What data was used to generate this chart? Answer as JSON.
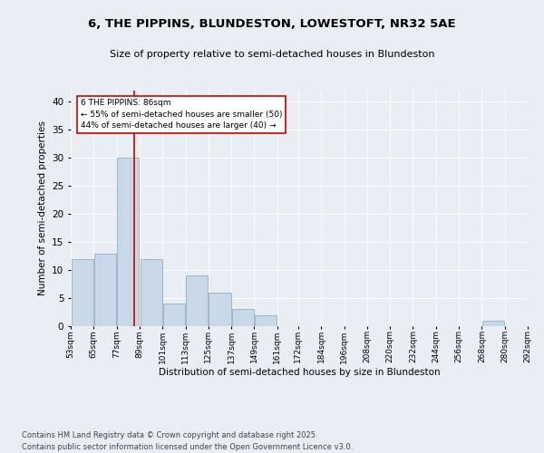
{
  "title": "6, THE PIPPINS, BLUNDESTON, LOWESTOFT, NR32 5AE",
  "subtitle": "Size of property relative to semi-detached houses in Blundeston",
  "xlabel": "Distribution of semi-detached houses by size in Blundeston",
  "ylabel": "Number of semi-detached properties",
  "bar_color": "#c8d8e8",
  "bar_edge_color": "#9ab8cc",
  "annotation_text": "6 THE PIPPINS: 86sqm\n← 55% of semi-detached houses are smaller (50)\n44% of semi-detached houses are larger (40) →",
  "vline_x": 86,
  "vline_color": "#cc0000",
  "footer1": "Contains HM Land Registry data © Crown copyright and database right 2025.",
  "footer2": "Contains public sector information licensed under the Open Government Licence v3.0.",
  "bins": [
    53,
    65,
    77,
    89,
    101,
    113,
    125,
    137,
    149,
    161,
    172,
    184,
    196,
    208,
    220,
    232,
    244,
    256,
    268,
    280,
    292
  ],
  "bin_labels": [
    "53sqm",
    "65sqm",
    "77sqm",
    "89sqm",
    "101sqm",
    "113sqm",
    "125sqm",
    "137sqm",
    "149sqm",
    "161sqm",
    "172sqm",
    "184sqm",
    "196sqm",
    "208sqm",
    "220sqm",
    "232sqm",
    "244sqm",
    "256sqm",
    "268sqm",
    "280sqm",
    "292sqm"
  ],
  "counts": [
    12,
    13,
    30,
    12,
    4,
    9,
    6,
    3,
    2,
    0,
    0,
    0,
    0,
    0,
    0,
    0,
    0,
    0,
    1,
    0,
    0
  ],
  "ylim": [
    0,
    42
  ],
  "yticks": [
    0,
    5,
    10,
    15,
    20,
    25,
    30,
    35,
    40
  ],
  "background_color": "#e8eef4",
  "plot_bg_color": "#e8eef4"
}
